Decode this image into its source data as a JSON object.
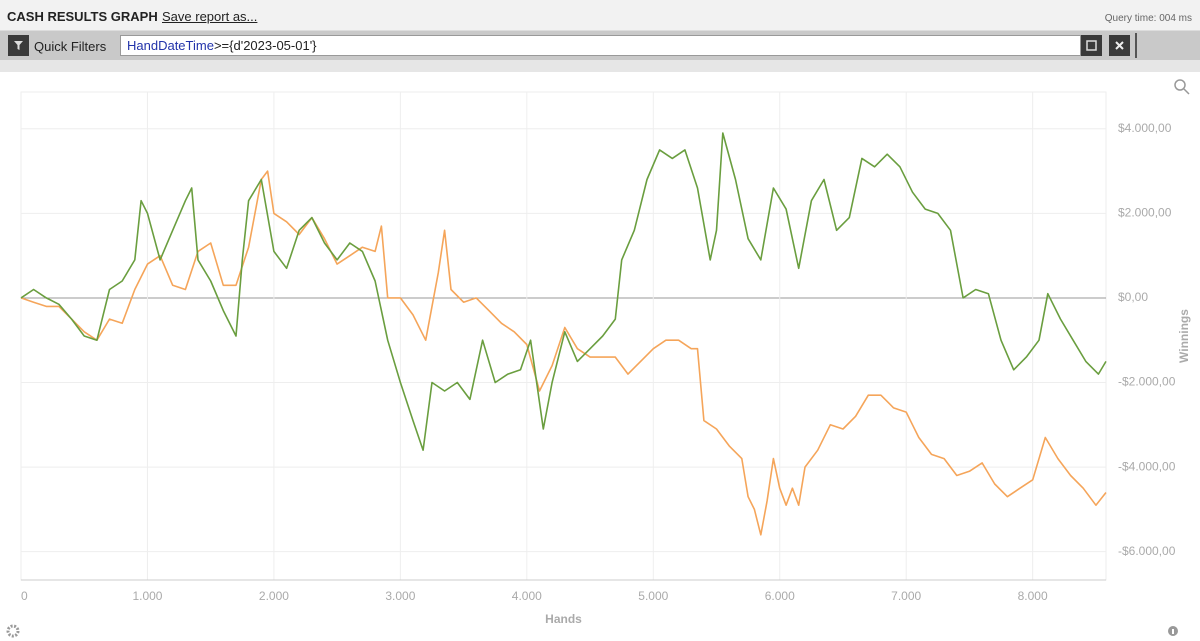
{
  "header": {
    "title": "CASH RESULTS GRAPH",
    "save_link": "Save report as...",
    "query_time": "Query time: 004 ms"
  },
  "filter": {
    "label": "Quick Filters",
    "field": "HandDateTime",
    "value": ">={d'2023-05-01'}"
  },
  "chart_data": {
    "type": "line",
    "xlabel": "Hands",
    "ylabel": "Winnings",
    "grid": true,
    "xlim": [
      0,
      8580
    ],
    "ylim": [
      -6670,
      4870
    ],
    "xticks": [
      0,
      {
        "value": 1000,
        "label": "1.000"
      },
      {
        "value": 2000,
        "label": "2.000"
      },
      {
        "value": 3000,
        "label": "3.000"
      },
      {
        "value": 4000,
        "label": "4.000"
      },
      {
        "value": 5000,
        "label": "5.000"
      },
      {
        "value": 6000,
        "label": "6.000"
      },
      {
        "value": 7000,
        "label": "7.000"
      },
      {
        "value": 8000,
        "label": "8.000"
      }
    ],
    "yticks": [
      {
        "value": -6000,
        "label": "-$6.000,00"
      },
      {
        "value": -4000,
        "label": "-$4.000,00"
      },
      {
        "value": -2000,
        "label": "-$2.000,00"
      },
      {
        "value": 0,
        "label": "$0,00"
      },
      {
        "value": 2000,
        "label": "$2.000,00"
      },
      {
        "value": 4000,
        "label": "$4.000,00"
      }
    ],
    "series": [
      {
        "color": "#6a9e3f",
        "x": [
          0,
          100,
          200,
          300,
          400,
          500,
          600,
          700,
          800,
          900,
          950,
          1000,
          1100,
          1200,
          1300,
          1350,
          1400,
          1500,
          1600,
          1700,
          1750,
          1800,
          1900,
          2000,
          2100,
          2200,
          2300,
          2400,
          2500,
          2600,
          2700,
          2800,
          2850,
          2900,
          3000,
          3100,
          3180,
          3250,
          3350,
          3450,
          3550,
          3650,
          3750,
          3850,
          3950,
          4030,
          4130,
          4200,
          4300,
          4400,
          4500,
          4600,
          4700,
          4750,
          4850,
          4950,
          5050,
          5150,
          5250,
          5350,
          5450,
          5500,
          5550,
          5650,
          5750,
          5850,
          5950,
          6050,
          6150,
          6250,
          6350,
          6450,
          6550,
          6650,
          6750,
          6850,
          6950,
          7050,
          7150,
          7250,
          7350,
          7450,
          7550,
          7650,
          7750,
          7850,
          7950,
          8050,
          8120,
          8220,
          8320,
          8420,
          8520,
          8580
        ],
        "values": [
          0,
          200,
          0,
          -150,
          -500,
          -900,
          -1000,
          200,
          400,
          900,
          2300,
          2000,
          900,
          1600,
          2300,
          2600,
          900,
          400,
          -300,
          -900,
          900,
          2300,
          2800,
          1100,
          700,
          1600,
          1900,
          1300,
          900,
          1300,
          1100,
          400,
          -300,
          -1000,
          -2000,
          -2900,
          -3600,
          -2000,
          -2200,
          -2000,
          -2400,
          -1000,
          -2000,
          -1800,
          -1700,
          -1000,
          -3100,
          -2000,
          -800,
          -1500,
          -1200,
          -900,
          -500,
          900,
          1600,
          2800,
          3500,
          3300,
          3500,
          2600,
          900,
          1600,
          3900,
          2800,
          1400,
          900,
          2600,
          2100,
          700,
          2300,
          2800,
          1600,
          1900,
          3300,
          3100,
          3400,
          3100,
          2500,
          2100,
          2000,
          1600,
          0,
          200,
          100,
          -1000,
          -1700,
          -1400,
          -1000,
          100,
          -500,
          -1000,
          -1500,
          -1800,
          -1500
        ]
      },
      {
        "color": "#f5a55a",
        "x": [
          0,
          100,
          200,
          300,
          400,
          500,
          600,
          700,
          800,
          900,
          1000,
          1100,
          1200,
          1300,
          1400,
          1500,
          1600,
          1700,
          1800,
          1900,
          1950,
          2000,
          2100,
          2200,
          2300,
          2400,
          2500,
          2600,
          2700,
          2800,
          2850,
          2900,
          3000,
          3100,
          3200,
          3300,
          3350,
          3400,
          3500,
          3600,
          3700,
          3800,
          3900,
          4000,
          4100,
          4200,
          4300,
          4400,
          4500,
          4600,
          4700,
          4800,
          4900,
          5000,
          5100,
          5200,
          5300,
          5350,
          5400,
          5500,
          5600,
          5700,
          5750,
          5800,
          5850,
          5900,
          5950,
          6000,
          6050,
          6100,
          6150,
          6200,
          6300,
          6400,
          6500,
          6600,
          6700,
          6800,
          6900,
          7000,
          7050,
          7100,
          7200,
          7300,
          7400,
          7500,
          7600,
          7700,
          7800,
          7900,
          8000,
          8100,
          8200,
          8300,
          8400,
          8500,
          8580
        ],
        "values": [
          0,
          -100,
          -200,
          -200,
          -500,
          -800,
          -1000,
          -500,
          -600,
          200,
          800,
          1000,
          300,
          200,
          1100,
          1300,
          300,
          300,
          1200,
          2800,
          3000,
          2000,
          1800,
          1500,
          1900,
          1400,
          800,
          1000,
          1200,
          1100,
          1700,
          0,
          0,
          -400,
          -1000,
          600,
          1600,
          200,
          -100,
          0,
          -300,
          -600,
          -800,
          -1100,
          -2200,
          -1600,
          -700,
          -1200,
          -1400,
          -1400,
          -1400,
          -1800,
          -1500,
          -1200,
          -1000,
          -1000,
          -1200,
          -1200,
          -2900,
          -3100,
          -3500,
          -3800,
          -4700,
          -5000,
          -5600,
          -4800,
          -3800,
          -4500,
          -4900,
          -4500,
          -4900,
          -4000,
          -3600,
          -3000,
          -3100,
          -2800,
          -2300,
          -2300,
          -2600,
          -2700,
          -3000,
          -3300,
          -3700,
          -3800,
          -4200,
          -4100,
          -3900,
          -4400,
          -4700,
          -4500,
          -4300,
          -3300,
          -3800,
          -4200,
          -4500,
          -4900,
          -4600
        ]
      }
    ]
  }
}
